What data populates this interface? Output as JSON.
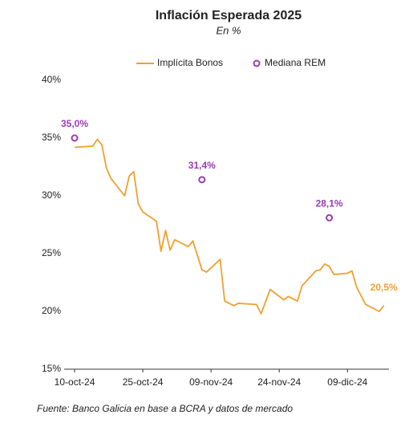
{
  "chart_data": {
    "type": "line",
    "title": "Inflación Esperada 2025",
    "subtitle": "En %",
    "source": "Fuente: Banco Galicia en base a BCRA y datos de mercado",
    "xlim": [
      "2024-10-04",
      "2024-12-19"
    ],
    "xticks": [
      {
        "value": "2024-10-10",
        "label": "10-oct-24"
      },
      {
        "value": "2024-10-25",
        "label": "25-oct-24"
      },
      {
        "value": "2024-11-09",
        "label": "09-nov-24"
      },
      {
        "value": "2024-11-24",
        "label": "24-nov-24"
      },
      {
        "value": "2024-12-09",
        "label": "09-dic-24"
      }
    ],
    "ylim": [
      15,
      40
    ],
    "yticks": [
      {
        "value": 15,
        "label": "15%"
      },
      {
        "value": 20,
        "label": "20%"
      },
      {
        "value": 25,
        "label": "25%"
      },
      {
        "value": 30,
        "label": "30%"
      },
      {
        "value": 35,
        "label": "35%"
      },
      {
        "value": 40,
        "label": "40%"
      }
    ],
    "grid": false,
    "legend": "top",
    "series": [
      {
        "name": "Implícita Bonos",
        "color": "#f0a030",
        "kind": "line",
        "x": [
          "2024-10-10",
          "2024-10-14",
          "2024-10-15",
          "2024-10-16",
          "2024-10-17",
          "2024-10-18",
          "2024-10-21",
          "2024-10-22",
          "2024-10-23",
          "2024-10-24",
          "2024-10-25",
          "2024-10-28",
          "2024-10-29",
          "2024-10-30",
          "2024-10-31",
          "2024-11-01",
          "2024-11-04",
          "2024-11-05",
          "2024-11-07",
          "2024-11-08",
          "2024-11-11",
          "2024-11-12",
          "2024-11-14",
          "2024-11-15",
          "2024-11-19",
          "2024-11-20",
          "2024-11-22",
          "2024-11-25",
          "2024-11-26",
          "2024-11-28",
          "2024-11-29",
          "2024-12-02",
          "2024-12-03",
          "2024-12-04",
          "2024-12-05",
          "2024-12-06",
          "2024-12-09",
          "2024-12-10",
          "2024-12-11",
          "2024-12-13",
          "2024-12-16",
          "2024-12-17"
        ],
        "values": [
          34.2,
          34.3,
          34.9,
          34.4,
          32.4,
          31.5,
          30.0,
          31.7,
          32.1,
          29.3,
          28.6,
          27.8,
          25.2,
          27.0,
          25.3,
          26.2,
          25.6,
          26.1,
          23.6,
          23.4,
          24.5,
          20.9,
          20.5,
          20.7,
          20.6,
          19.8,
          21.9,
          21.0,
          21.3,
          20.9,
          22.2,
          23.5,
          23.6,
          24.1,
          23.9,
          23.2,
          23.3,
          23.5,
          22.1,
          20.6,
          20.0,
          20.5
        ],
        "value_labels": [
          null,
          null,
          null,
          null,
          null,
          null,
          null,
          null,
          null,
          null,
          null,
          null,
          null,
          null,
          null,
          null,
          null,
          null,
          null,
          null,
          null,
          null,
          null,
          null,
          null,
          null,
          null,
          null,
          null,
          null,
          null,
          null,
          null,
          null,
          null,
          null,
          null,
          null,
          null,
          null,
          null,
          "20,5%"
        ]
      },
      {
        "name": "Mediana REM",
        "color": "#9b3bb5",
        "kind": "scatter",
        "x": [
          "2024-10-10",
          "2024-11-07",
          "2024-12-05"
        ],
        "values": [
          35.0,
          31.4,
          28.1
        ],
        "value_labels": [
          "35,0%",
          "31,4%",
          "28,1%"
        ]
      }
    ]
  }
}
